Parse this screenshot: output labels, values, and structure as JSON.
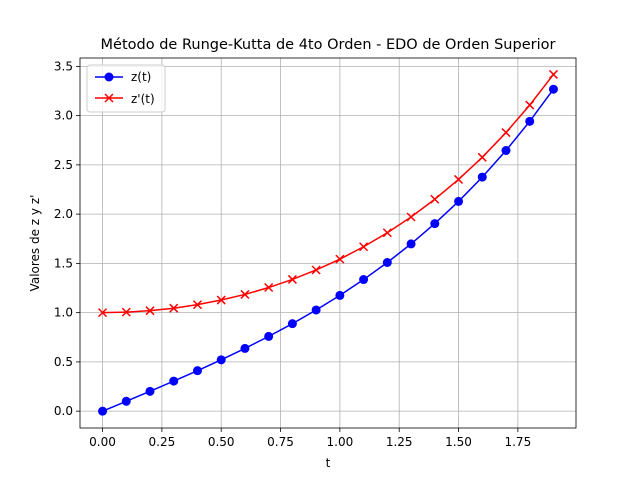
{
  "chart_data": {
    "type": "line",
    "title": "Método de Runge-Kutta de 4to Orden - EDO de Orden Superior",
    "xlabel": "t",
    "ylabel": "Valores de z y z'",
    "xlim": [
      -0.095,
      1.995
    ],
    "ylim": [
      -0.171,
      3.585
    ],
    "xticks": [
      0.0,
      0.25,
      0.5,
      0.75,
      1.0,
      1.25,
      1.5,
      1.75
    ],
    "xtick_labels": [
      "0.00",
      "0.25",
      "0.50",
      "0.75",
      "1.00",
      "1.25",
      "1.50",
      "1.75"
    ],
    "yticks": [
      0.0,
      0.5,
      1.0,
      1.5,
      2.0,
      2.5,
      3.0,
      3.5
    ],
    "ytick_labels": [
      "0.0",
      "0.5",
      "1.0",
      "1.5",
      "2.0",
      "2.5",
      "3.0",
      "3.5"
    ],
    "grid": true,
    "legend_position": "top-left",
    "x": [
      0.0,
      0.1,
      0.2,
      0.3,
      0.4,
      0.5,
      0.6,
      0.7,
      0.8,
      0.9,
      1.0,
      1.1,
      1.2,
      1.3,
      1.4,
      1.5,
      1.6,
      1.7,
      1.8,
      1.9
    ],
    "series": [
      {
        "name": "z(t)",
        "color": "#0000ff",
        "marker": "circle",
        "values": [
          0.0,
          0.1,
          0.201,
          0.305,
          0.411,
          0.521,
          0.637,
          0.759,
          0.888,
          1.027,
          1.175,
          1.336,
          1.509,
          1.698,
          1.904,
          2.129,
          2.376,
          2.646,
          2.942,
          3.268
        ]
      },
      {
        "name": "z'(t)",
        "color": "#ff0000",
        "marker": "x",
        "values": [
          1.0,
          1.005,
          1.02,
          1.045,
          1.081,
          1.128,
          1.185,
          1.255,
          1.337,
          1.433,
          1.543,
          1.669,
          1.811,
          1.971,
          2.151,
          2.352,
          2.577,
          2.828,
          3.107,
          3.418
        ]
      }
    ]
  }
}
